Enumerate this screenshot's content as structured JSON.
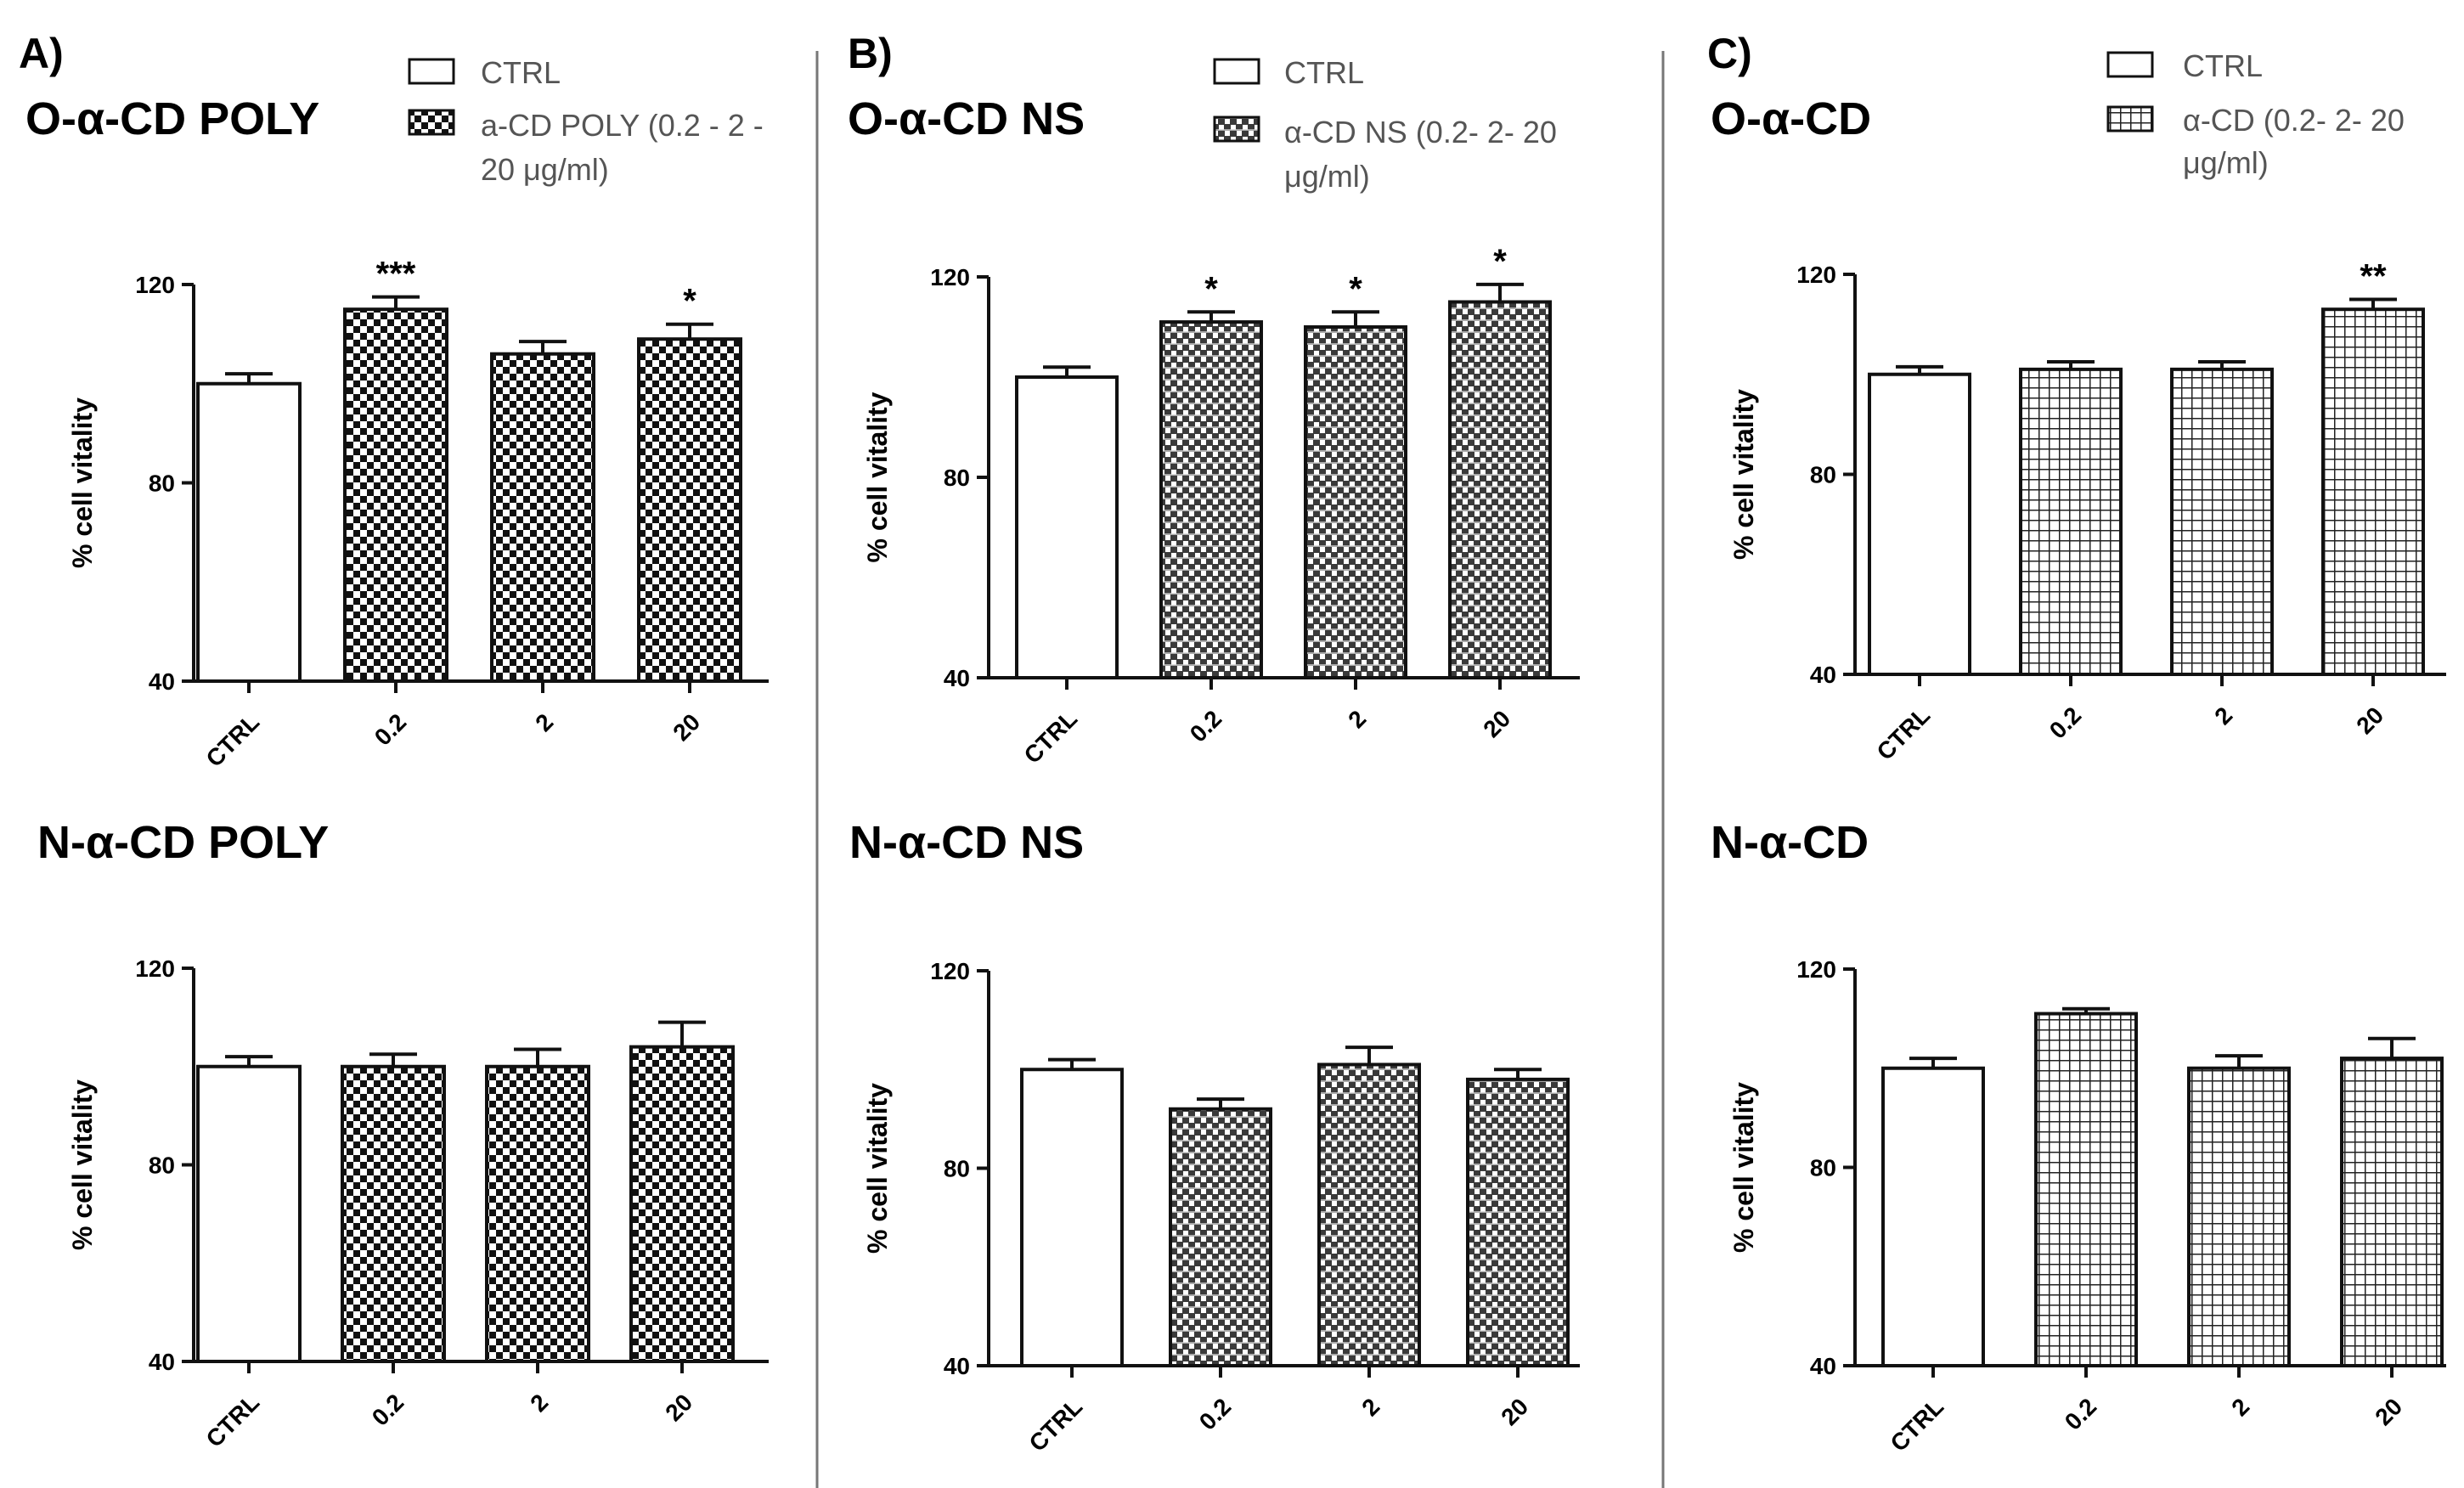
{
  "figure": {
    "panels": [
      {
        "letter": "A)",
        "legend": {
          "ctrl": "CTRL",
          "treated": "a-CD POLY (0.2 - 2 -",
          "treated_line2": "20 μg/ml)"
        }
      },
      {
        "letter": "B)",
        "legend": {
          "ctrl": "CTRL",
          "treated": "α-CD NS (0.2- 2- 20",
          "treated_line2": "μg/ml)"
        }
      },
      {
        "letter": "C)",
        "legend": {
          "ctrl": "CTRL",
          "treated": "α-CD (0.2- 2- 20",
          "treated_line2": "μg/ml)"
        }
      }
    ]
  },
  "chart_data": [
    {
      "id": "A-top",
      "type": "bar",
      "title": "O-α-CD POLY",
      "ylabel": "% cell vitality",
      "ylim": [
        40,
        120
      ],
      "yticks": [
        40,
        80,
        120
      ],
      "categories": [
        "CTRL",
        "0.2",
        "2",
        "20"
      ],
      "values": [
        100,
        115,
        106,
        109
      ],
      "errors": [
        2,
        2.5,
        2.5,
        3
      ],
      "significance": [
        "",
        "***",
        "",
        "*"
      ]
    },
    {
      "id": "B-top",
      "type": "bar",
      "title": "O-α-CD NS",
      "ylabel": "% cell vitality",
      "ylim": [
        40,
        120
      ],
      "yticks": [
        40,
        80,
        120
      ],
      "categories": [
        "CTRL",
        "0.2",
        "2",
        "20"
      ],
      "values": [
        100,
        111,
        110,
        115
      ],
      "errors": [
        2,
        2,
        3,
        3.5
      ],
      "significance": [
        "",
        "*",
        "*",
        "*"
      ]
    },
    {
      "id": "C-top",
      "type": "bar",
      "title": "O-α-CD",
      "ylabel": "% cell vitality",
      "ylim": [
        40,
        120
      ],
      "yticks": [
        40,
        80,
        120
      ],
      "categories": [
        "CTRL",
        "0.2",
        "2",
        "20"
      ],
      "values": [
        100,
        101,
        101,
        113
      ],
      "errors": [
        1.5,
        1.5,
        1.5,
        2
      ],
      "significance": [
        "",
        "",
        "",
        "**"
      ]
    },
    {
      "id": "A-bottom",
      "type": "bar",
      "title": "N-α-CD POLY",
      "ylabel": "% cell vitality",
      "ylim": [
        40,
        120
      ],
      "yticks": [
        40,
        80,
        120
      ],
      "categories": [
        "CTRL",
        "0.2",
        "2",
        "20"
      ],
      "values": [
        100,
        100,
        100,
        104
      ],
      "errors": [
        2,
        2.5,
        3.5,
        5
      ],
      "significance": [
        "",
        "",
        "",
        ""
      ]
    },
    {
      "id": "B-bottom",
      "type": "bar",
      "title": "N-α-CD NS",
      "ylabel": "% cell vitality",
      "ylim": [
        40,
        120
      ],
      "yticks": [
        40,
        80,
        120
      ],
      "categories": [
        "CTRL",
        "0.2",
        "2",
        "20"
      ],
      "values": [
        100,
        92,
        101,
        98
      ],
      "errors": [
        2,
        2,
        3.5,
        2
      ],
      "significance": [
        "",
        "",
        "",
        ""
      ]
    },
    {
      "id": "C-bottom",
      "type": "bar",
      "title": "N-α-CD",
      "ylabel": "% cell vitality",
      "ylim": [
        40,
        120
      ],
      "yticks": [
        40,
        80,
        120
      ],
      "categories": [
        "CTRL",
        "0.2",
        "2",
        "20"
      ],
      "values": [
        100,
        111,
        100,
        102
      ],
      "errors": [
        2,
        1,
        2.5,
        4
      ],
      "significance": [
        "",
        "",
        "",
        ""
      ]
    }
  ],
  "colors": {
    "ctrl_fill": "#ffffff",
    "treated_fill": "#ffffff",
    "pattern_ink": "#1a1a1a",
    "divider": "#777777"
  }
}
